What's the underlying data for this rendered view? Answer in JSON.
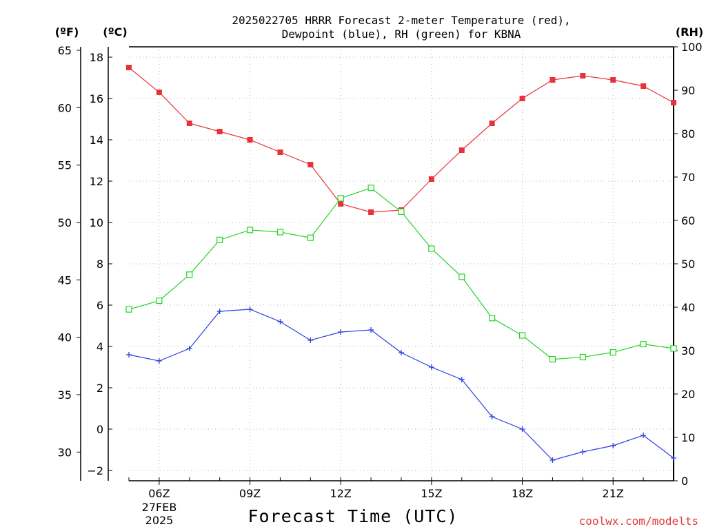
{
  "title": [
    "2025022705 HRRR Forecast 2-meter Temperature (red),",
    "Dewpoint (blue), RH (green) for KBNA"
  ],
  "units": {
    "f": "(ºF)",
    "c": "(ºC)",
    "rh": "(RH)"
  },
  "xlabel": "Forecast Time (UTC)",
  "credit": "coolwx.com/modelts",
  "date_label": [
    "27FEB",
    "2025"
  ],
  "colors": {
    "temperature": "#e8323a",
    "dewpoint": "#2a40e0",
    "rh": "#22d422",
    "grid": "#b0b0b0"
  },
  "chart_data": {
    "type": "line",
    "x_hours": [
      5,
      6,
      7,
      8,
      9,
      10,
      11,
      12,
      13,
      14,
      15,
      16,
      17,
      18,
      19,
      20,
      21,
      22,
      23
    ],
    "x_ticks": [
      6,
      9,
      12,
      15,
      18,
      21
    ],
    "x_tick_labels": [
      "06Z",
      "09Z",
      "12Z",
      "15Z",
      "18Z",
      "21Z"
    ],
    "xlim": [
      5,
      23
    ],
    "y_left_c": {
      "label": "(ºC)",
      "ticks": [
        -2,
        0,
        2,
        4,
        6,
        8,
        10,
        12,
        14,
        16,
        18
      ],
      "lim": [
        -2.5,
        18.5
      ]
    },
    "y_left_f": {
      "label": "(ºF)",
      "ticks": [
        30,
        35,
        40,
        45,
        50,
        55,
        60,
        65
      ]
    },
    "y_right_rh": {
      "label": "(RH)",
      "ticks": [
        0,
        10,
        20,
        30,
        40,
        50,
        60,
        70,
        80,
        90,
        100
      ],
      "lim": [
        0,
        100
      ]
    },
    "grid": true,
    "series": [
      {
        "name": "Temperature",
        "axis": "c",
        "marker": "square-filled",
        "values": [
          17.5,
          16.3,
          14.8,
          14.4,
          14.0,
          13.4,
          12.8,
          10.9,
          10.5,
          10.6,
          12.1,
          13.5,
          14.8,
          16.0,
          16.9,
          17.1,
          16.9,
          16.6,
          15.8
        ]
      },
      {
        "name": "Dewpoint",
        "axis": "c",
        "marker": "plus",
        "values": [
          3.6,
          3.3,
          3.9,
          5.7,
          5.8,
          5.2,
          4.3,
          4.7,
          4.8,
          3.7,
          3.0,
          2.4,
          0.6,
          0.0,
          -1.5,
          -1.1,
          -0.8,
          -0.3,
          -1.4
        ]
      },
      {
        "name": "RH",
        "axis": "rh",
        "marker": "square-open",
        "values": [
          39.5,
          41.5,
          47.5,
          55.5,
          57.8,
          57.3,
          56.0,
          65.1,
          67.5,
          62.0,
          53.5,
          47.0,
          37.5,
          33.5,
          28.0,
          28.5,
          29.6,
          31.5,
          30.5
        ]
      }
    ]
  }
}
